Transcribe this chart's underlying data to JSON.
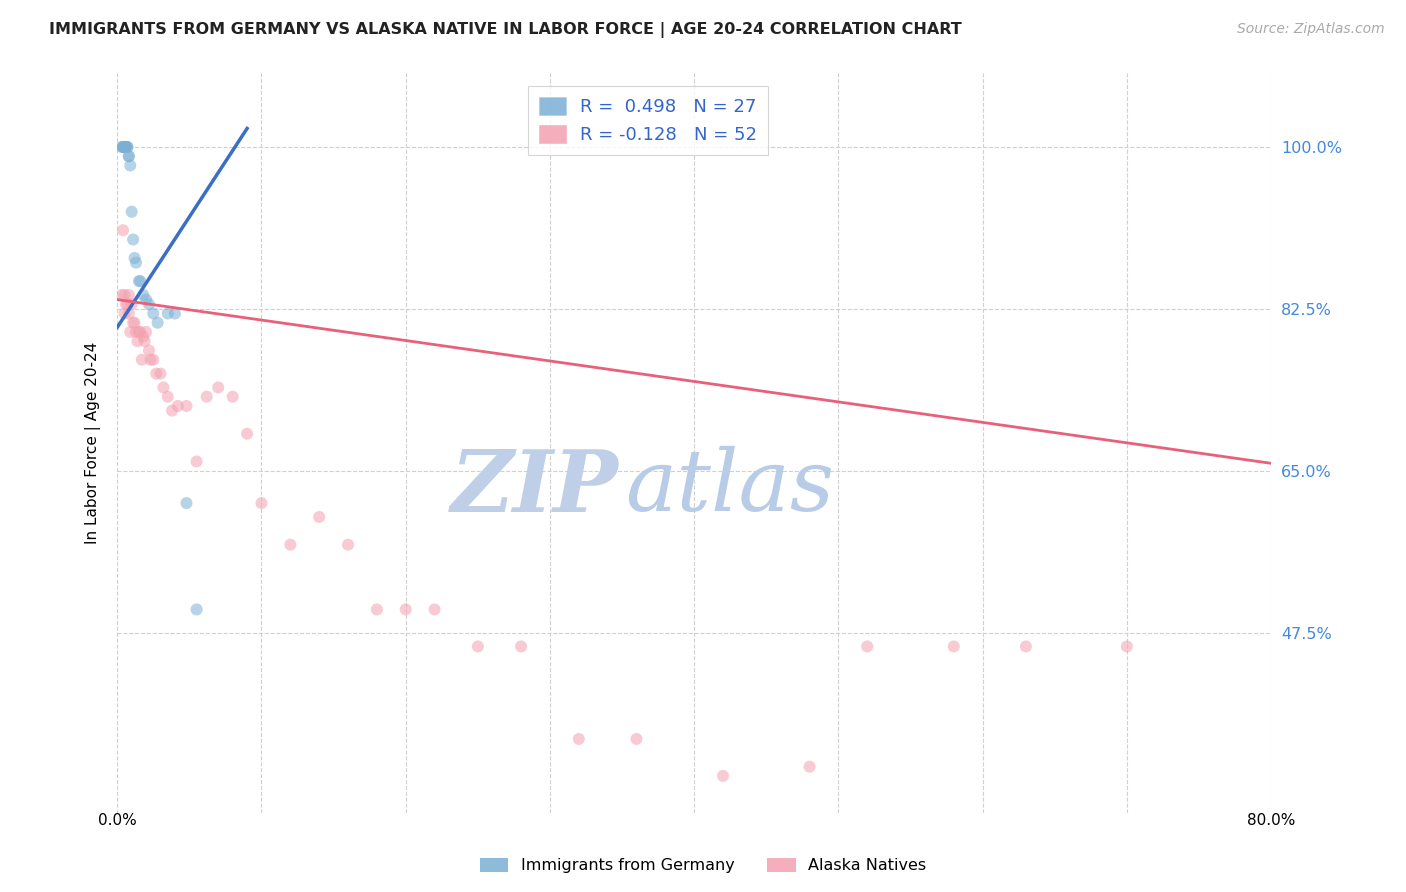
{
  "title": "IMMIGRANTS FROM GERMANY VS ALASKA NATIVE IN LABOR FORCE | AGE 20-24 CORRELATION CHART",
  "source": "Source: ZipAtlas.com",
  "ylabel": "In Labor Force | Age 20-24",
  "xlim": [
    0.0,
    0.8
  ],
  "ylim": [
    0.28,
    1.08
  ],
  "xtick_positions": [
    0.0,
    0.1,
    0.2,
    0.3,
    0.4,
    0.5,
    0.6,
    0.7,
    0.8
  ],
  "ytick_positions": [
    0.475,
    0.65,
    0.825,
    1.0
  ],
  "yticklabels": [
    "47.5%",
    "65.0%",
    "82.5%",
    "100.0%"
  ],
  "grid_color": "#d0d0d0",
  "background_color": "#ffffff",
  "blue_color": "#7bafd4",
  "pink_color": "#f4a0b0",
  "blue_line_color": "#3a6fc4",
  "pink_line_color": "#e8607a",
  "legend_R_blue": "R =  0.498",
  "legend_N_blue": "N = 27",
  "legend_R_pink": "R = -0.128",
  "legend_N_pink": "N = 52",
  "blue_x": [
    0.003,
    0.004,
    0.004,
    0.005,
    0.005,
    0.006,
    0.006,
    0.007,
    0.007,
    0.008,
    0.008,
    0.009,
    0.01,
    0.011,
    0.012,
    0.013,
    0.015,
    0.016,
    0.018,
    0.02,
    0.022,
    0.025,
    0.028,
    0.035,
    0.04,
    0.048,
    0.055
  ],
  "blue_y": [
    1.0,
    1.0,
    1.0,
    1.0,
    1.0,
    1.0,
    1.0,
    1.0,
    1.0,
    0.99,
    0.99,
    0.98,
    0.93,
    0.9,
    0.88,
    0.875,
    0.855,
    0.855,
    0.84,
    0.835,
    0.83,
    0.82,
    0.81,
    0.82,
    0.82,
    0.615,
    0.5
  ],
  "pink_x": [
    0.003,
    0.004,
    0.005,
    0.005,
    0.006,
    0.007,
    0.008,
    0.008,
    0.009,
    0.01,
    0.011,
    0.012,
    0.013,
    0.014,
    0.015,
    0.016,
    0.017,
    0.018,
    0.019,
    0.02,
    0.022,
    0.023,
    0.025,
    0.027,
    0.03,
    0.032,
    0.035,
    0.038,
    0.042,
    0.048,
    0.055,
    0.062,
    0.07,
    0.08,
    0.09,
    0.1,
    0.12,
    0.14,
    0.16,
    0.18,
    0.2,
    0.22,
    0.25,
    0.28,
    0.32,
    0.36,
    0.42,
    0.48,
    0.52,
    0.58,
    0.63,
    0.7
  ],
  "pink_y": [
    0.84,
    0.91,
    0.82,
    0.84,
    0.83,
    0.83,
    0.84,
    0.82,
    0.8,
    0.83,
    0.81,
    0.81,
    0.8,
    0.79,
    0.8,
    0.8,
    0.77,
    0.795,
    0.79,
    0.8,
    0.78,
    0.77,
    0.77,
    0.755,
    0.755,
    0.74,
    0.73,
    0.715,
    0.72,
    0.72,
    0.66,
    0.73,
    0.74,
    0.73,
    0.69,
    0.615,
    0.57,
    0.6,
    0.57,
    0.5,
    0.5,
    0.5,
    0.46,
    0.46,
    0.36,
    0.36,
    0.32,
    0.33,
    0.46,
    0.46,
    0.46,
    0.46
  ],
  "blue_trend_x": [
    0.0,
    0.09
  ],
  "blue_trend_y": [
    0.805,
    1.02
  ],
  "pink_trend_x": [
    0.0,
    0.8
  ],
  "pink_trend_y": [
    0.835,
    0.658
  ],
  "marker_size": 75,
  "marker_alpha": 0.55,
  "watermark_zip": "ZIP",
  "watermark_atlas": "atlas",
  "watermark_color_zip": "#c0cfe8",
  "watermark_color_atlas": "#b8cce8",
  "bottom_legend": [
    "Immigrants from Germany",
    "Alaska Natives"
  ]
}
